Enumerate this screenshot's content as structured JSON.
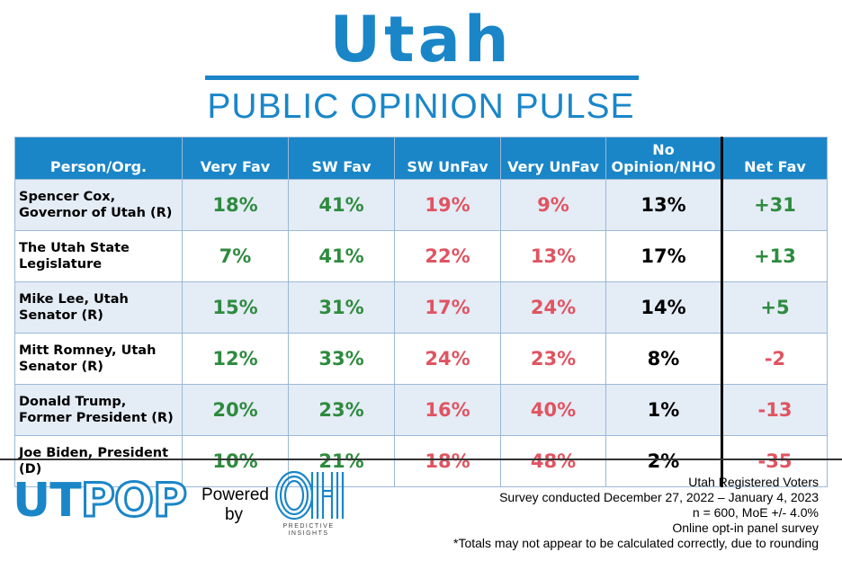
{
  "header": {
    "title": "Utah",
    "subtitle": "PUBLIC OPINION PULSE"
  },
  "colors": {
    "brand_blue": "#1a86c8",
    "favorable_green": "#2e8b3e",
    "unfavorable_red": "#e05461",
    "row_shade": "#e4ecf6"
  },
  "chart_data": {
    "type": "table",
    "columns": [
      "Person/Org.",
      "Very Fav",
      "SW Fav",
      "SW UnFav",
      "Very UnFav",
      "No Opinion/NHO",
      "Net Fav"
    ],
    "column_lines": {
      "no_opinion_line1": "No",
      "no_opinion_line2": "Opinion/NHO"
    },
    "rows": [
      {
        "person_line1": "Spencer Cox,",
        "person_line2": "Governor of Utah (R)",
        "very_fav": "18%",
        "sw_fav": "41%",
        "sw_unfav": "19%",
        "very_unfav": "9%",
        "no_opinion": "13%",
        "net_fav": "+31"
      },
      {
        "person_line1": "The Utah State",
        "person_line2": "Legislature",
        "very_fav": "7%",
        "sw_fav": "41%",
        "sw_unfav": "22%",
        "very_unfav": "13%",
        "no_opinion": "17%",
        "net_fav": "+13"
      },
      {
        "person_line1": "Mike Lee, Utah",
        "person_line2": "Senator (R)",
        "very_fav": "15%",
        "sw_fav": "31%",
        "sw_unfav": "17%",
        "very_unfav": "24%",
        "no_opinion": "14%",
        "net_fav": "+5"
      },
      {
        "person_line1": "Mitt Romney, Utah",
        "person_line2": "Senator (R)",
        "very_fav": "12%",
        "sw_fav": "33%",
        "sw_unfav": "24%",
        "very_unfav": "23%",
        "no_opinion": "8%",
        "net_fav": "-2"
      },
      {
        "person_line1": "Donald Trump,",
        "person_line2": "Former President (R)",
        "very_fav": "20%",
        "sw_fav": "23%",
        "sw_unfav": "16%",
        "very_unfav": "40%",
        "no_opinion": "1%",
        "net_fav": "-13"
      },
      {
        "person_line1": "Joe Biden, President",
        "person_line2": "(D)",
        "very_fav": "10%",
        "sw_fav": "21%",
        "sw_unfav": "18%",
        "very_unfav": "48%",
        "no_opinion": "2%",
        "net_fav": "-35"
      }
    ]
  },
  "footer": {
    "logo_solid": "UT",
    "logo_outline": "POP",
    "powered_line1": "Powered",
    "powered_line2": "by",
    "partner_caption_line1": "PREDICTIVE",
    "partner_caption_line2": "INSIGHTS",
    "partner_icon": "oh-logo-icon",
    "notes": [
      "Utah Registered Voters",
      "Survey conducted December 27, 2022 – January 4, 2023",
      "n = 600, MoE +/- 4.0%",
      "Online opt-in panel survey",
      "*Totals may not appear to be calculated correctly, due to rounding"
    ]
  }
}
